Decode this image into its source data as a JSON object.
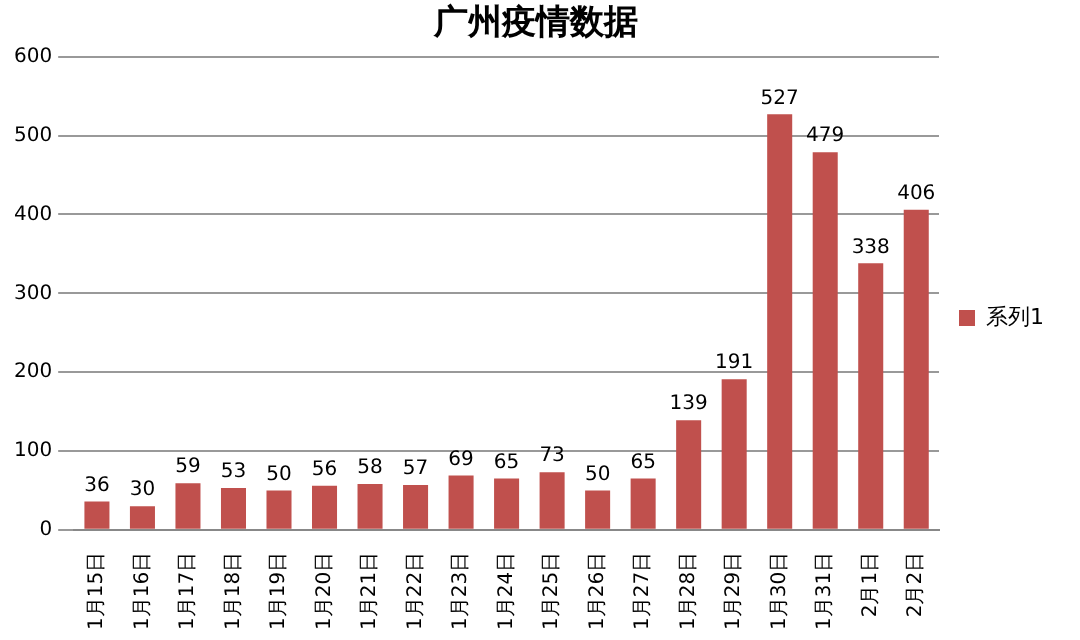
{
  "chart_data": {
    "type": "bar",
    "title": "广州疫情数据",
    "categories": [
      "1月15日",
      "1月16日",
      "1月17日",
      "1月18日",
      "1月19日",
      "1月20日",
      "1月21日",
      "1月22日",
      "1月23日",
      "1月24日",
      "1月25日",
      "1月26日",
      "1月27日",
      "1月28日",
      "1月29日",
      "1月30日",
      "1月31日",
      "2月1日",
      "2月2日"
    ],
    "series": [
      {
        "name": "系列1",
        "color": "#c0504d",
        "values": [
          36,
          30,
          59,
          53,
          50,
          56,
          58,
          57,
          69,
          65,
          73,
          50,
          65,
          139,
          191,
          527,
          479,
          338,
          406
        ]
      }
    ],
    "ylim": [
      0,
      600
    ],
    "yticks": [
      0,
      100,
      200,
      300,
      400,
      500,
      600
    ],
    "grid": "y",
    "legend": "right",
    "data_labels": true
  }
}
